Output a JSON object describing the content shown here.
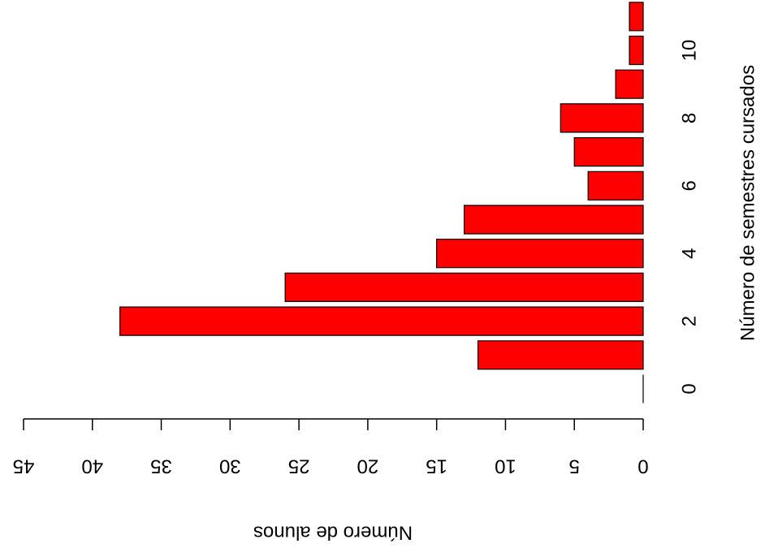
{
  "chart_data": {
    "type": "bar",
    "orientation": "horizontal",
    "x_label": "Número de alunos",
    "y_label": "Número de semestres cursados",
    "categories": [
      0,
      null,
      2,
      null,
      4,
      null,
      6,
      null,
      8,
      null,
      10,
      null
    ],
    "values": [
      0,
      12,
      38,
      26,
      15,
      13,
      4,
      5,
      6,
      2,
      1,
      1
    ],
    "color": "#ff0000",
    "xlim": [
      0,
      45
    ],
    "xticks": [
      0,
      5,
      10,
      15,
      20,
      25,
      30,
      35,
      40,
      45
    ]
  }
}
